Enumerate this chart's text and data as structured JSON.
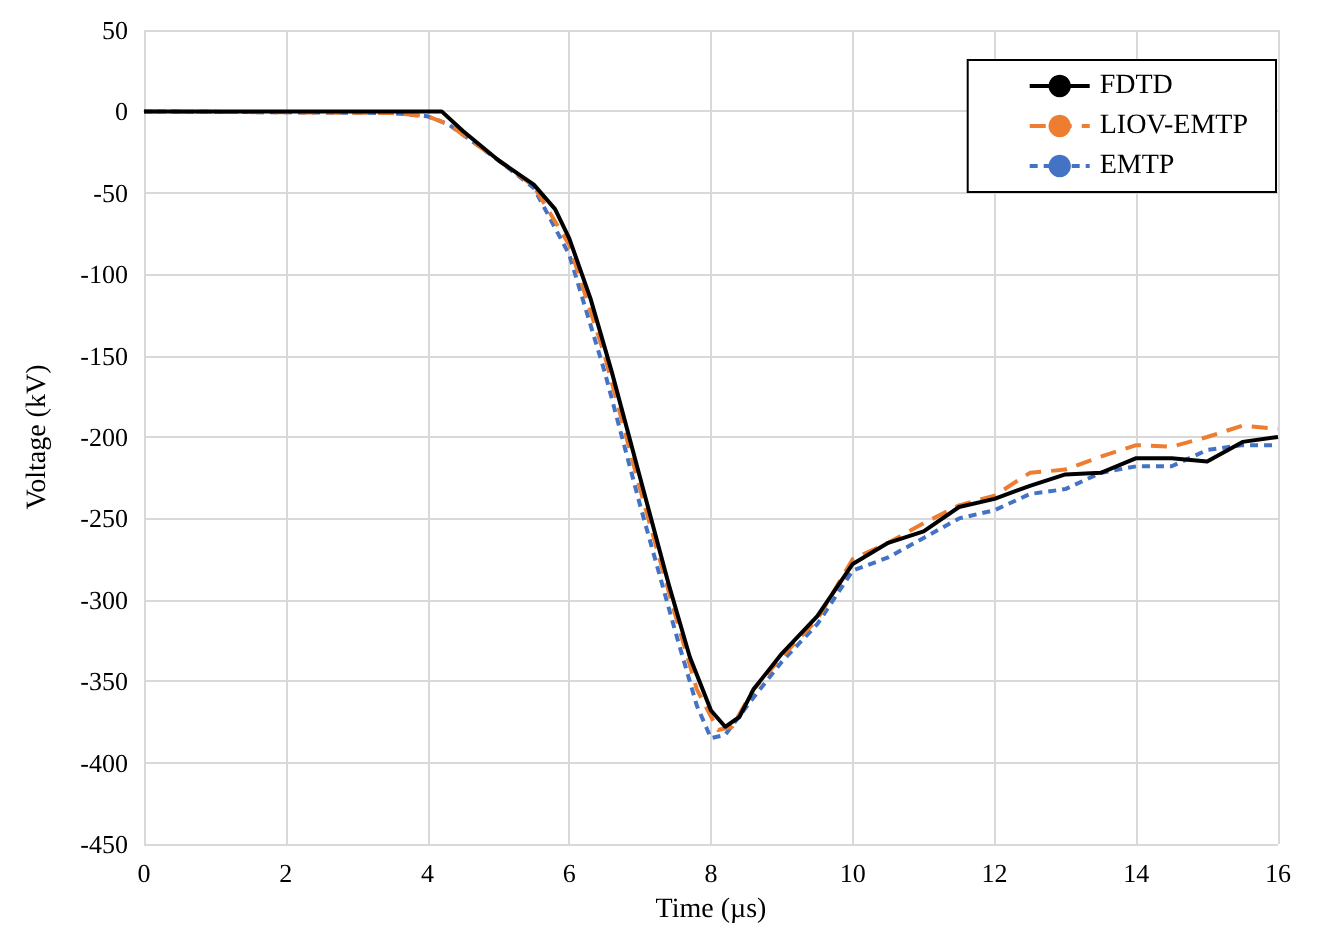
{
  "chart_data": {
    "type": "line",
    "xlabel": "Time (µs)",
    "ylabel": "Voltage (kV)",
    "xlim": [
      0,
      16
    ],
    "xticks": [
      0,
      2,
      4,
      6,
      8,
      10,
      12,
      14,
      16
    ],
    "ylim": [
      -450,
      50
    ],
    "yticks": [
      -450,
      -400,
      -350,
      -300,
      -250,
      -200,
      -150,
      -100,
      -50,
      0,
      50
    ],
    "grid": true,
    "legend": "top right",
    "marker": "none",
    "series": [
      {
        "name": "FDTD",
        "color": "#000000",
        "line_style": "solid",
        "x": [
          0,
          4.2,
          4.5,
          5,
          5.5,
          5.8,
          6,
          6.3,
          6.6,
          7,
          7.4,
          7.7,
          8,
          8.2,
          8.4,
          8.6,
          9,
          9.5,
          10,
          10.5,
          11,
          11.5,
          12,
          12.5,
          13,
          13.5,
          14,
          14.5,
          15,
          15.5,
          16
        ],
        "values": [
          0,
          0,
          -12,
          -30,
          -45,
          -60,
          -78,
          -115,
          -160,
          -225,
          -290,
          -335,
          -368,
          -378,
          -372,
          -355,
          -333,
          -310,
          -278,
          -265,
          -258,
          -243,
          -238,
          -230,
          -223,
          -222,
          -213,
          -213,
          -215,
          -203,
          -200
        ]
      },
      {
        "name": "LIOV-EMTP",
        "color": "#ed7d31",
        "line_style": "dashed",
        "x": [
          0,
          3.5,
          4,
          4.3,
          5,
          5.5,
          6,
          6.5,
          7,
          7.5,
          7.8,
          8.1,
          8.3,
          8.6,
          9,
          9.5,
          10,
          10.5,
          11,
          11.5,
          12,
          12.5,
          13,
          13.5,
          14,
          14.5,
          15,
          15.5,
          16
        ],
        "values": [
          0,
          -1,
          -3,
          -8,
          -30,
          -46,
          -82,
          -150,
          -232,
          -310,
          -355,
          -380,
          -378,
          -355,
          -335,
          -312,
          -275,
          -265,
          -253,
          -242,
          -236,
          -222,
          -220,
          -212,
          -205,
          -206,
          -200,
          -193,
          -195
        ]
      },
      {
        "name": "EMTP",
        "color": "#4472c4",
        "line_style": "dotted",
        "x": [
          0,
          3.5,
          4,
          4.3,
          5,
          5.5,
          6,
          6.5,
          7,
          7.5,
          7.8,
          8,
          8.2,
          8.6,
          9,
          9.5,
          10,
          10.5,
          11,
          11.5,
          12,
          12.5,
          13,
          13.5,
          14,
          14.5,
          15,
          15.5,
          16
        ],
        "values": [
          0,
          -1,
          -3,
          -8,
          -30,
          -47,
          -88,
          -160,
          -242,
          -320,
          -365,
          -385,
          -383,
          -360,
          -338,
          -315,
          -282,
          -274,
          -262,
          -250,
          -245,
          -235,
          -232,
          -222,
          -218,
          -218,
          -208,
          -205,
          -205
        ]
      }
    ]
  }
}
